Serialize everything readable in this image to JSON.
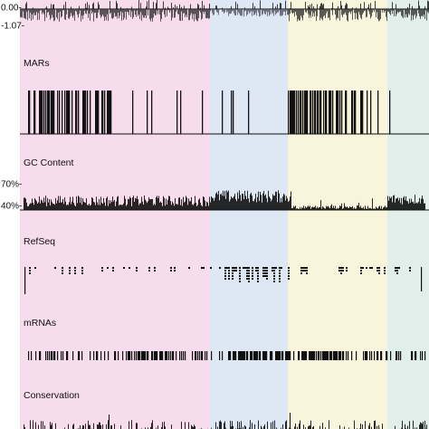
{
  "top_track": {
    "ticks": [
      "0.00-",
      "-1.07-"
    ]
  },
  "tracks": [
    {
      "label": "MARs"
    },
    {
      "label": "GC Content",
      "ticks": [
        "70%-",
        "40%-"
      ]
    },
    {
      "label": "RefSeq"
    },
    {
      "label": "mRNAs"
    },
    {
      "label": "Conservation"
    }
  ]
}
